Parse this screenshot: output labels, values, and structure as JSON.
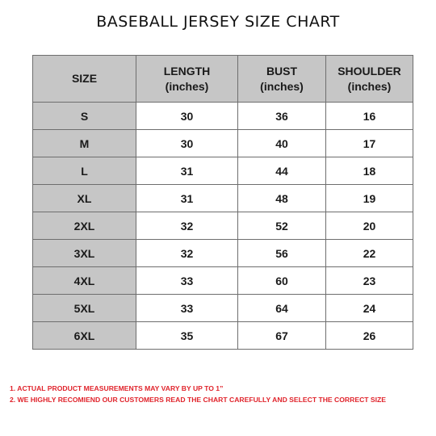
{
  "title": "BASEBALL JERSEY SIZE CHART",
  "table": {
    "headers": [
      {
        "line1": "SIZE",
        "line2": ""
      },
      {
        "line1": "LENGTH",
        "line2": "(inches)"
      },
      {
        "line1": "BUST",
        "line2": "(inches)"
      },
      {
        "line1": "SHOULDER",
        "line2": "(inches)"
      }
    ],
    "rows": [
      {
        "size": "S",
        "length": "30",
        "bust": "36",
        "shoulder": "16"
      },
      {
        "size": "M",
        "length": "30",
        "bust": "40",
        "shoulder": "17"
      },
      {
        "size": "L",
        "length": "31",
        "bust": "44",
        "shoulder": "18"
      },
      {
        "size": "XL",
        "length": "31",
        "bust": "48",
        "shoulder": "19"
      },
      {
        "size": "2XL",
        "length": "32",
        "bust": "52",
        "shoulder": "20"
      },
      {
        "size": "3XL",
        "length": "32",
        "bust": "56",
        "shoulder": "22"
      },
      {
        "size": "4XL",
        "length": "33",
        "bust": "60",
        "shoulder": "23"
      },
      {
        "size": "5XL",
        "length": "33",
        "bust": "64",
        "shoulder": "24"
      },
      {
        "size": "6XL",
        "length": "35",
        "bust": "67",
        "shoulder": "26"
      }
    ]
  },
  "notes": [
    "1. ACTUAL PRODUCT MEASUREMENTS MAY VARY BY UP TO 1”",
    "2. WE HIGHLY RECOMIEND OUR CUSTOMERS READ THE CHART CAREFULLY AND SELECT THE CORRECT SIZE"
  ],
  "colors": {
    "header_fill": "#c6c6c6",
    "border": "#6e6e6e",
    "note_text": "#e0232b"
  }
}
